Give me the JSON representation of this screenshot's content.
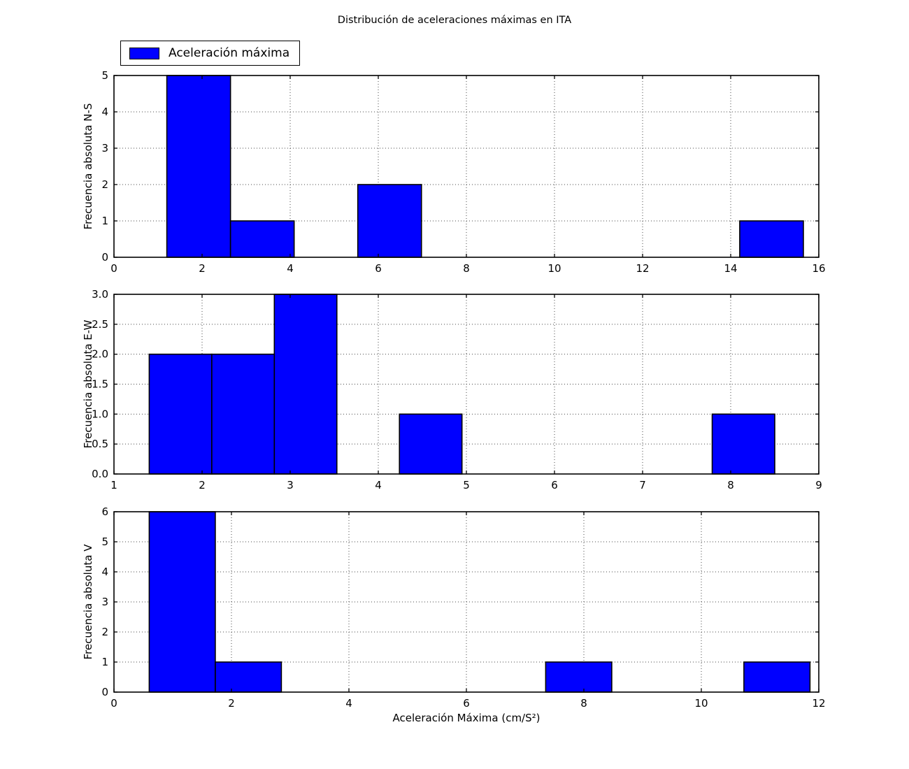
{
  "title": "Distribución de aceleraciones máximas en ITA",
  "xlabel": "Aceleración Máxima (cm/S²)",
  "legend": {
    "label": "Aceleración máxima",
    "swatch_color": "#0000ff"
  },
  "colors": {
    "bar_fill": "#0000ff",
    "bar_edge": "#000000",
    "axis": "#000000",
    "grid": "#4a4a4a",
    "background": "#ffffff"
  },
  "chart_data": [
    {
      "type": "bar",
      "name": "N-S",
      "ylabel": "Frecuencia absoluta N-S",
      "xlim": [
        0,
        16
      ],
      "ylim": [
        0,
        5
      ],
      "xticks": [
        0,
        2,
        4,
        6,
        8,
        10,
        12,
        14,
        16
      ],
      "xtick_labels": [
        "0",
        "2",
        "4",
        "6",
        "8",
        "10",
        "12",
        "14",
        "16"
      ],
      "yticks": [
        0,
        1,
        2,
        3,
        4,
        5
      ],
      "ytick_labels": [
        "0",
        "1",
        "2",
        "3",
        "4",
        "5"
      ],
      "bin_start": 1.2,
      "bin_width": 1.445,
      "counts": [
        5,
        1,
        0,
        2,
        0,
        0,
        0,
        0,
        0,
        1
      ],
      "grid": true,
      "legend_position": "upper-left-above"
    },
    {
      "type": "bar",
      "name": "E-W",
      "ylabel": "Frecuencia absoluta E-W",
      "xlim": [
        1,
        9
      ],
      "ylim": [
        0,
        3
      ],
      "xticks": [
        1,
        2,
        3,
        4,
        5,
        6,
        7,
        8,
        9
      ],
      "xtick_labels": [
        "1",
        "2",
        "3",
        "4",
        "5",
        "6",
        "7",
        "8",
        "9"
      ],
      "yticks": [
        0,
        0.5,
        1,
        1.5,
        2,
        2.5,
        3
      ],
      "ytick_labels": [
        "0.0",
        "0.5",
        "1.0",
        "1.5",
        "2.0",
        "2.5",
        "3.0"
      ],
      "bin_start": 1.4,
      "bin_width": 0.71,
      "counts": [
        2,
        2,
        3,
        0,
        1,
        0,
        0,
        0,
        0,
        1
      ],
      "grid": true
    },
    {
      "type": "bar",
      "name": "V",
      "ylabel": "Frecuencia absoluta V",
      "xlim": [
        0,
        12
      ],
      "ylim": [
        0,
        6
      ],
      "xticks": [
        0,
        2,
        4,
        6,
        8,
        10,
        12
      ],
      "xtick_labels": [
        "0",
        "2",
        "4",
        "6",
        "8",
        "10",
        "12"
      ],
      "yticks": [
        0,
        1,
        2,
        3,
        4,
        5,
        6
      ],
      "ytick_labels": [
        "0",
        "1",
        "2",
        "3",
        "4",
        "5",
        "6"
      ],
      "bin_start": 0.6,
      "bin_width": 1.125,
      "counts": [
        6,
        1,
        0,
        0,
        0,
        0,
        1,
        0,
        0,
        1
      ],
      "grid": true
    }
  ]
}
